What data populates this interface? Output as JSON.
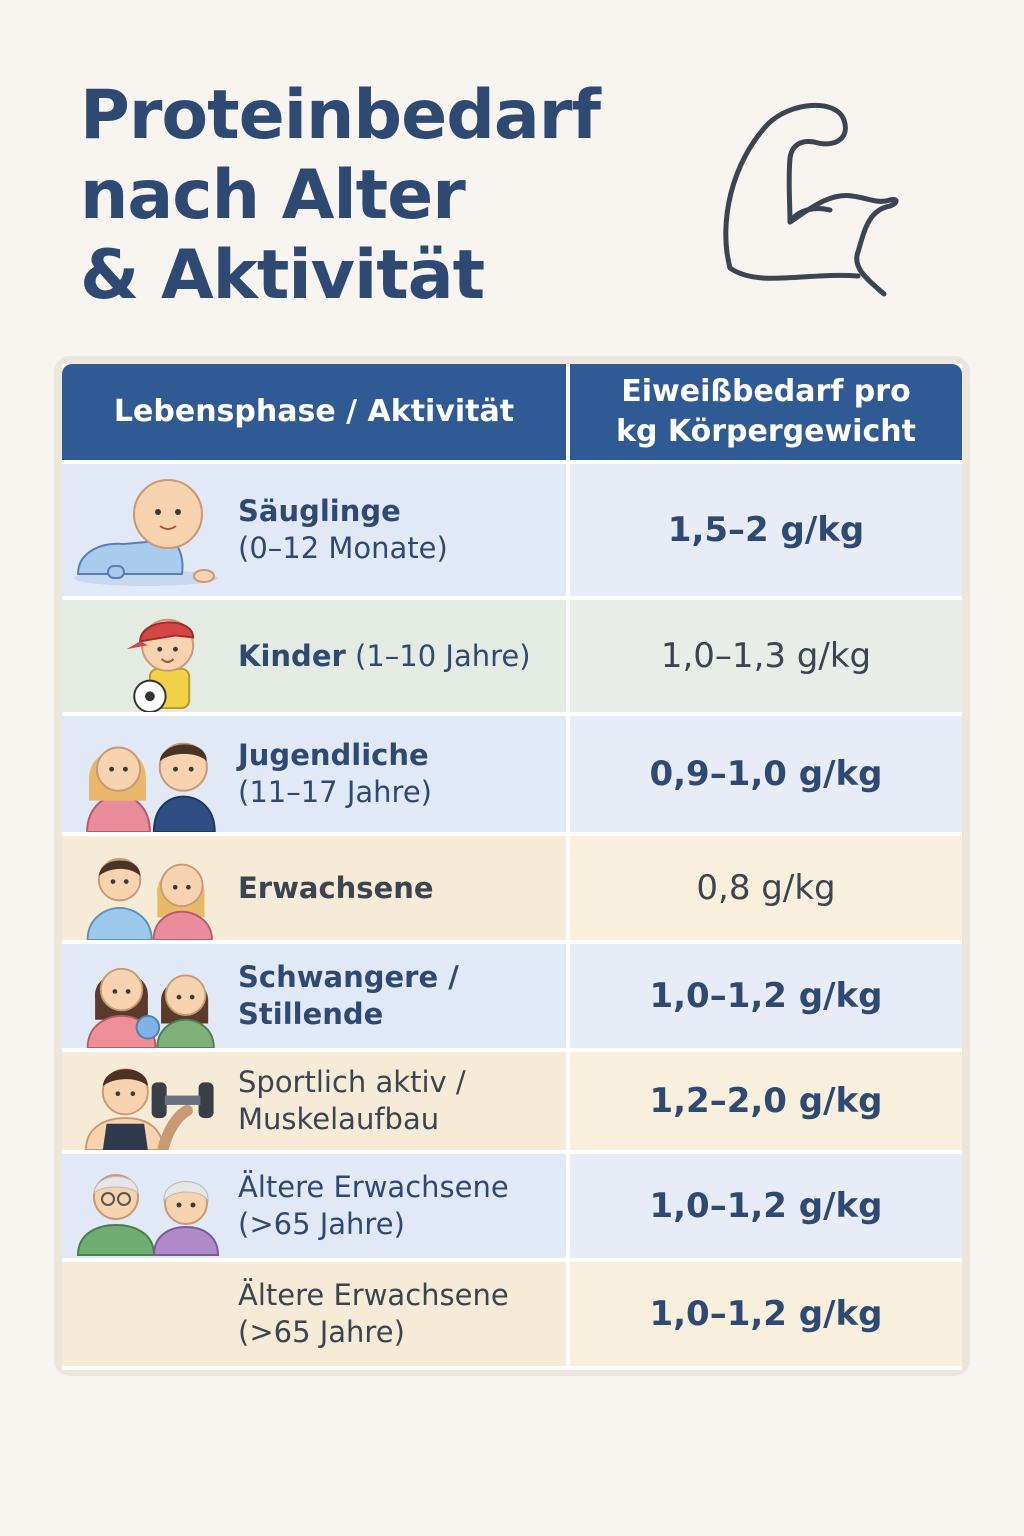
{
  "title_lines": [
    "Proteinbedarf",
    "nach Alter",
    "& Aktivität"
  ],
  "icons": {
    "header": "flexed-bicep-icon"
  },
  "table": {
    "header": {
      "col1": "Lebensphase / Aktivität",
      "col2_line1": "Eiweißbedarf pro",
      "col2_line2": "kg Körpergewicht"
    },
    "rows": [
      {
        "line1": "Säuglinge",
        "line2": "(0–12 Monate)",
        "value": "1,5–2 g/kg",
        "icon": "baby-icon"
      },
      {
        "line1": "Kinder",
        "line1_suffix": " (1–10 Jahre)",
        "value": "1,0–1,3 g/kg",
        "icon": "child-with-football-icon"
      },
      {
        "line1": "Jugendliche",
        "line2": "(11–17 Jahre)",
        "value": "0,9–1,0 g/kg",
        "icon": "teenagers-icon"
      },
      {
        "line1": "Erwachsene",
        "value": "0,8 g/kg",
        "icon": "adults-icon"
      },
      {
        "line1": "Schwangere /",
        "line2": "Stillende",
        "value": "1,0–1,2 g/kg",
        "icon": "pregnant-women-icon"
      },
      {
        "line1": "Sportlich aktiv /",
        "line2": "Muskelaufbau",
        "value": "1,2–2,0 g/kg",
        "icon": "athlete-with-dumbbell-icon"
      },
      {
        "line1": "Ältere Erwachsene",
        "line2": "(>65 Jahre)",
        "value": "1,0–1,2 g/kg",
        "icon": "seniors-icon"
      },
      {
        "line1": "Ältere Erwachsene",
        "line2": "(>65 Jahre)",
        "value": "1,0–1,2 g/kg"
      }
    ]
  }
}
